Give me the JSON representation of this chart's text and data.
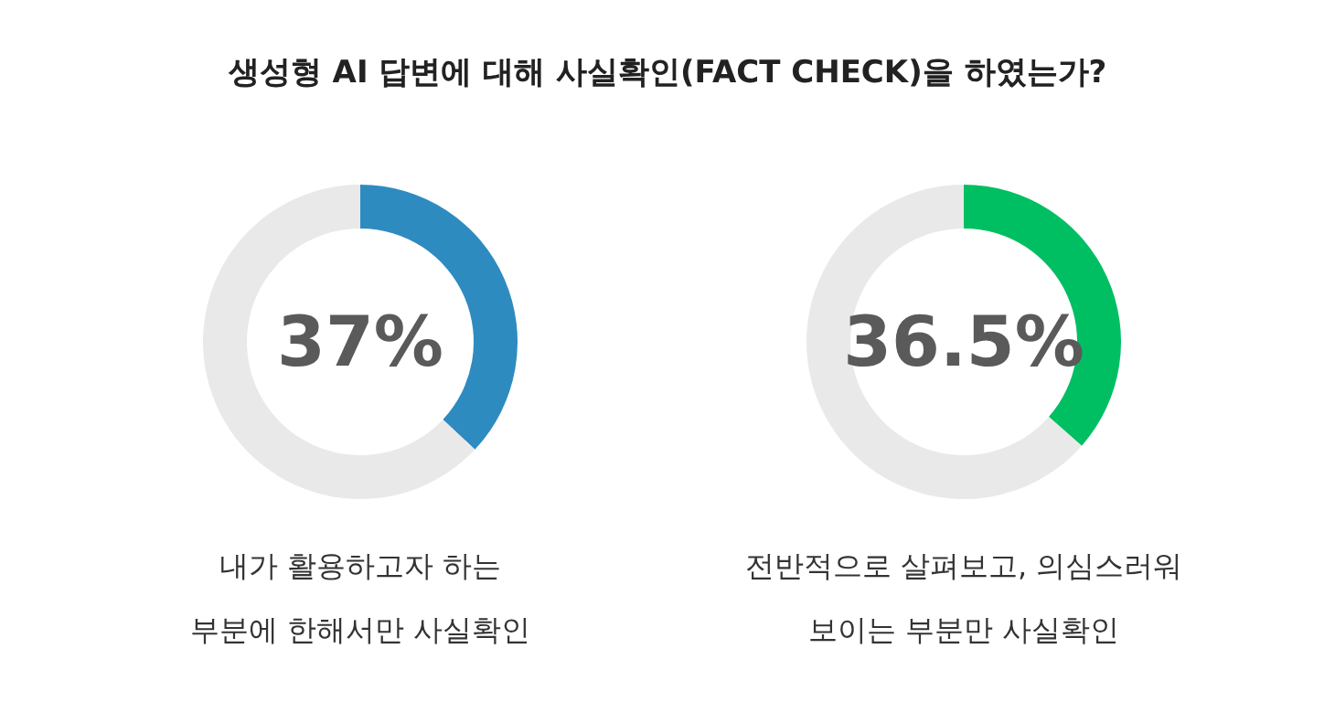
{
  "chart_data": [
    {
      "type": "donut",
      "title": "생성형 AI 답변에 대해 사실확인(FACT CHECK)을 하였는가?",
      "xlabel": "내가 활용하고자 하는 부분에 한해서만 사실확인",
      "categories": [
        null,
        null
      ],
      "values": [
        37,
        63
      ],
      "colors": [
        "#2e8bc0",
        "#e9e9e9"
      ],
      "value_labels": [
        "37%",
        null
      ]
    },
    {
      "type": "donut",
      "xlabel": "전반적으로 살펴보고, 의심스러워 보이는 부분만 사실확인",
      "categories": [
        null,
        null
      ],
      "values": [
        36.5,
        63.5
      ],
      "colors": [
        "#00bf63",
        "#e9e9e9"
      ],
      "value_labels": [
        "36.5%",
        null
      ]
    }
  ]
}
